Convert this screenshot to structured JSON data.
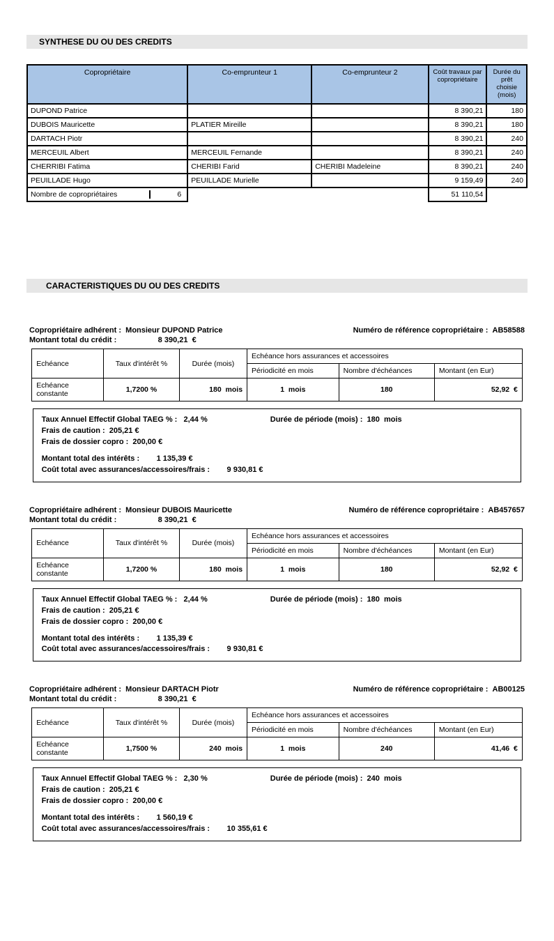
{
  "section1_title": "SYNTHESE DU OU DES CREDITS",
  "section2_title": "CARACTERISTIQUES DU OU DES CREDITS",
  "syn_headers": {
    "copro": "Copropriétaire",
    "co1": "Co-emprunteur 1",
    "co2": "Co-emprunteur 2",
    "cost": "Coût travaux par copropriétaire",
    "duration": "Durée du prêt choisie (mois)"
  },
  "syn_rows": [
    {
      "copro": "DUPOND Patrice",
      "co1": "",
      "co2": "",
      "cost": "8 390,21",
      "dur": "180"
    },
    {
      "copro": "DUBOIS Mauricette",
      "co1": "PLATIER Mireille",
      "co2": "",
      "cost": "8 390,21",
      "dur": "180"
    },
    {
      "copro": "DARTACH Piotr",
      "co1": "",
      "co2": "",
      "cost": "8 390,21",
      "dur": "240"
    },
    {
      "copro": "MERCEUIL Albert",
      "co1": "MERCEUIL Fernande",
      "co2": "",
      "cost": "8 390,21",
      "dur": "240"
    },
    {
      "copro": "CHERRIBI Fatima",
      "co1": "CHERIBI Farid",
      "co2": "CHERIBI Madeleine",
      "cost": "8 390,21",
      "dur": "240"
    },
    {
      "copro": "PEUILLADE Hugo",
      "co1": "PEUILLADE Murielle",
      "co2": "",
      "cost": "9 159,49",
      "dur": "240"
    }
  ],
  "syn_footer_label": "Nombre de copropriétaires",
  "syn_footer_count": "6",
  "syn_footer_total": "51 110,54",
  "carac_labels": {
    "adherent": "Copropriétaire adhérent :",
    "ref": "Numéro de référence copropriétaire :",
    "montant": "Montant total du crédit  :",
    "eur": "€",
    "echeance": "Echéance",
    "taux": "Taux d'intérêt %",
    "duree": "Durée (mois)",
    "hors": "Echéance hors assurances et accessoires",
    "period": "Périodicité en mois",
    "nb": "Nombre d'échéances",
    "mnt": "Montant (en Eur)",
    "ech_const": "Echéance constante",
    "mois": "mois",
    "taeg": "Taux Annuel Effectif Global TAEG % :",
    "duree_periode": "Durée de période (mois) :",
    "frais_caution": "Frais de caution :",
    "frais_dossier": "Frais de dossier copro :",
    "mnt_interets": "Montant total des intérêts :",
    "cout_total": "Coût total avec assurances/accessoires/frais :"
  },
  "carac_blocks": [
    {
      "name": "Monsieur DUPOND Patrice",
      "ref": "AB58588",
      "montant": "8 390,21",
      "taux": "1,7200 %",
      "duree": "180",
      "period": "1",
      "nb": "180",
      "mnt": "52,92",
      "taeg": "2,44 %",
      "duree_periode": "180",
      "caution": "205,21 €",
      "dossier": "200,00 €",
      "interets": "1 135,39  €",
      "cout": "9 930,81  €"
    },
    {
      "name": "Monsieur DUBOIS Mauricette",
      "ref": "AB457657",
      "montant": "8 390,21",
      "taux": "1,7200 %",
      "duree": "180",
      "period": "1",
      "nb": "180",
      "mnt": "52,92",
      "taeg": "2,44 %",
      "duree_periode": "180",
      "caution": "205,21 €",
      "dossier": "200,00 €",
      "interets": "1 135,39  €",
      "cout": "9 930,81  €"
    },
    {
      "name": "Monsieur DARTACH Piotr",
      "ref": "AB00125",
      "montant": "8 390,21",
      "taux": "1,7500 %",
      "duree": "240",
      "period": "1",
      "nb": "240",
      "mnt": "41,46",
      "taeg": "2,30 %",
      "duree_periode": "240",
      "caution": "205,21 €",
      "dossier": "200,00 €",
      "interets": "1 560,19  €",
      "cout": "10 355,61  €"
    }
  ]
}
